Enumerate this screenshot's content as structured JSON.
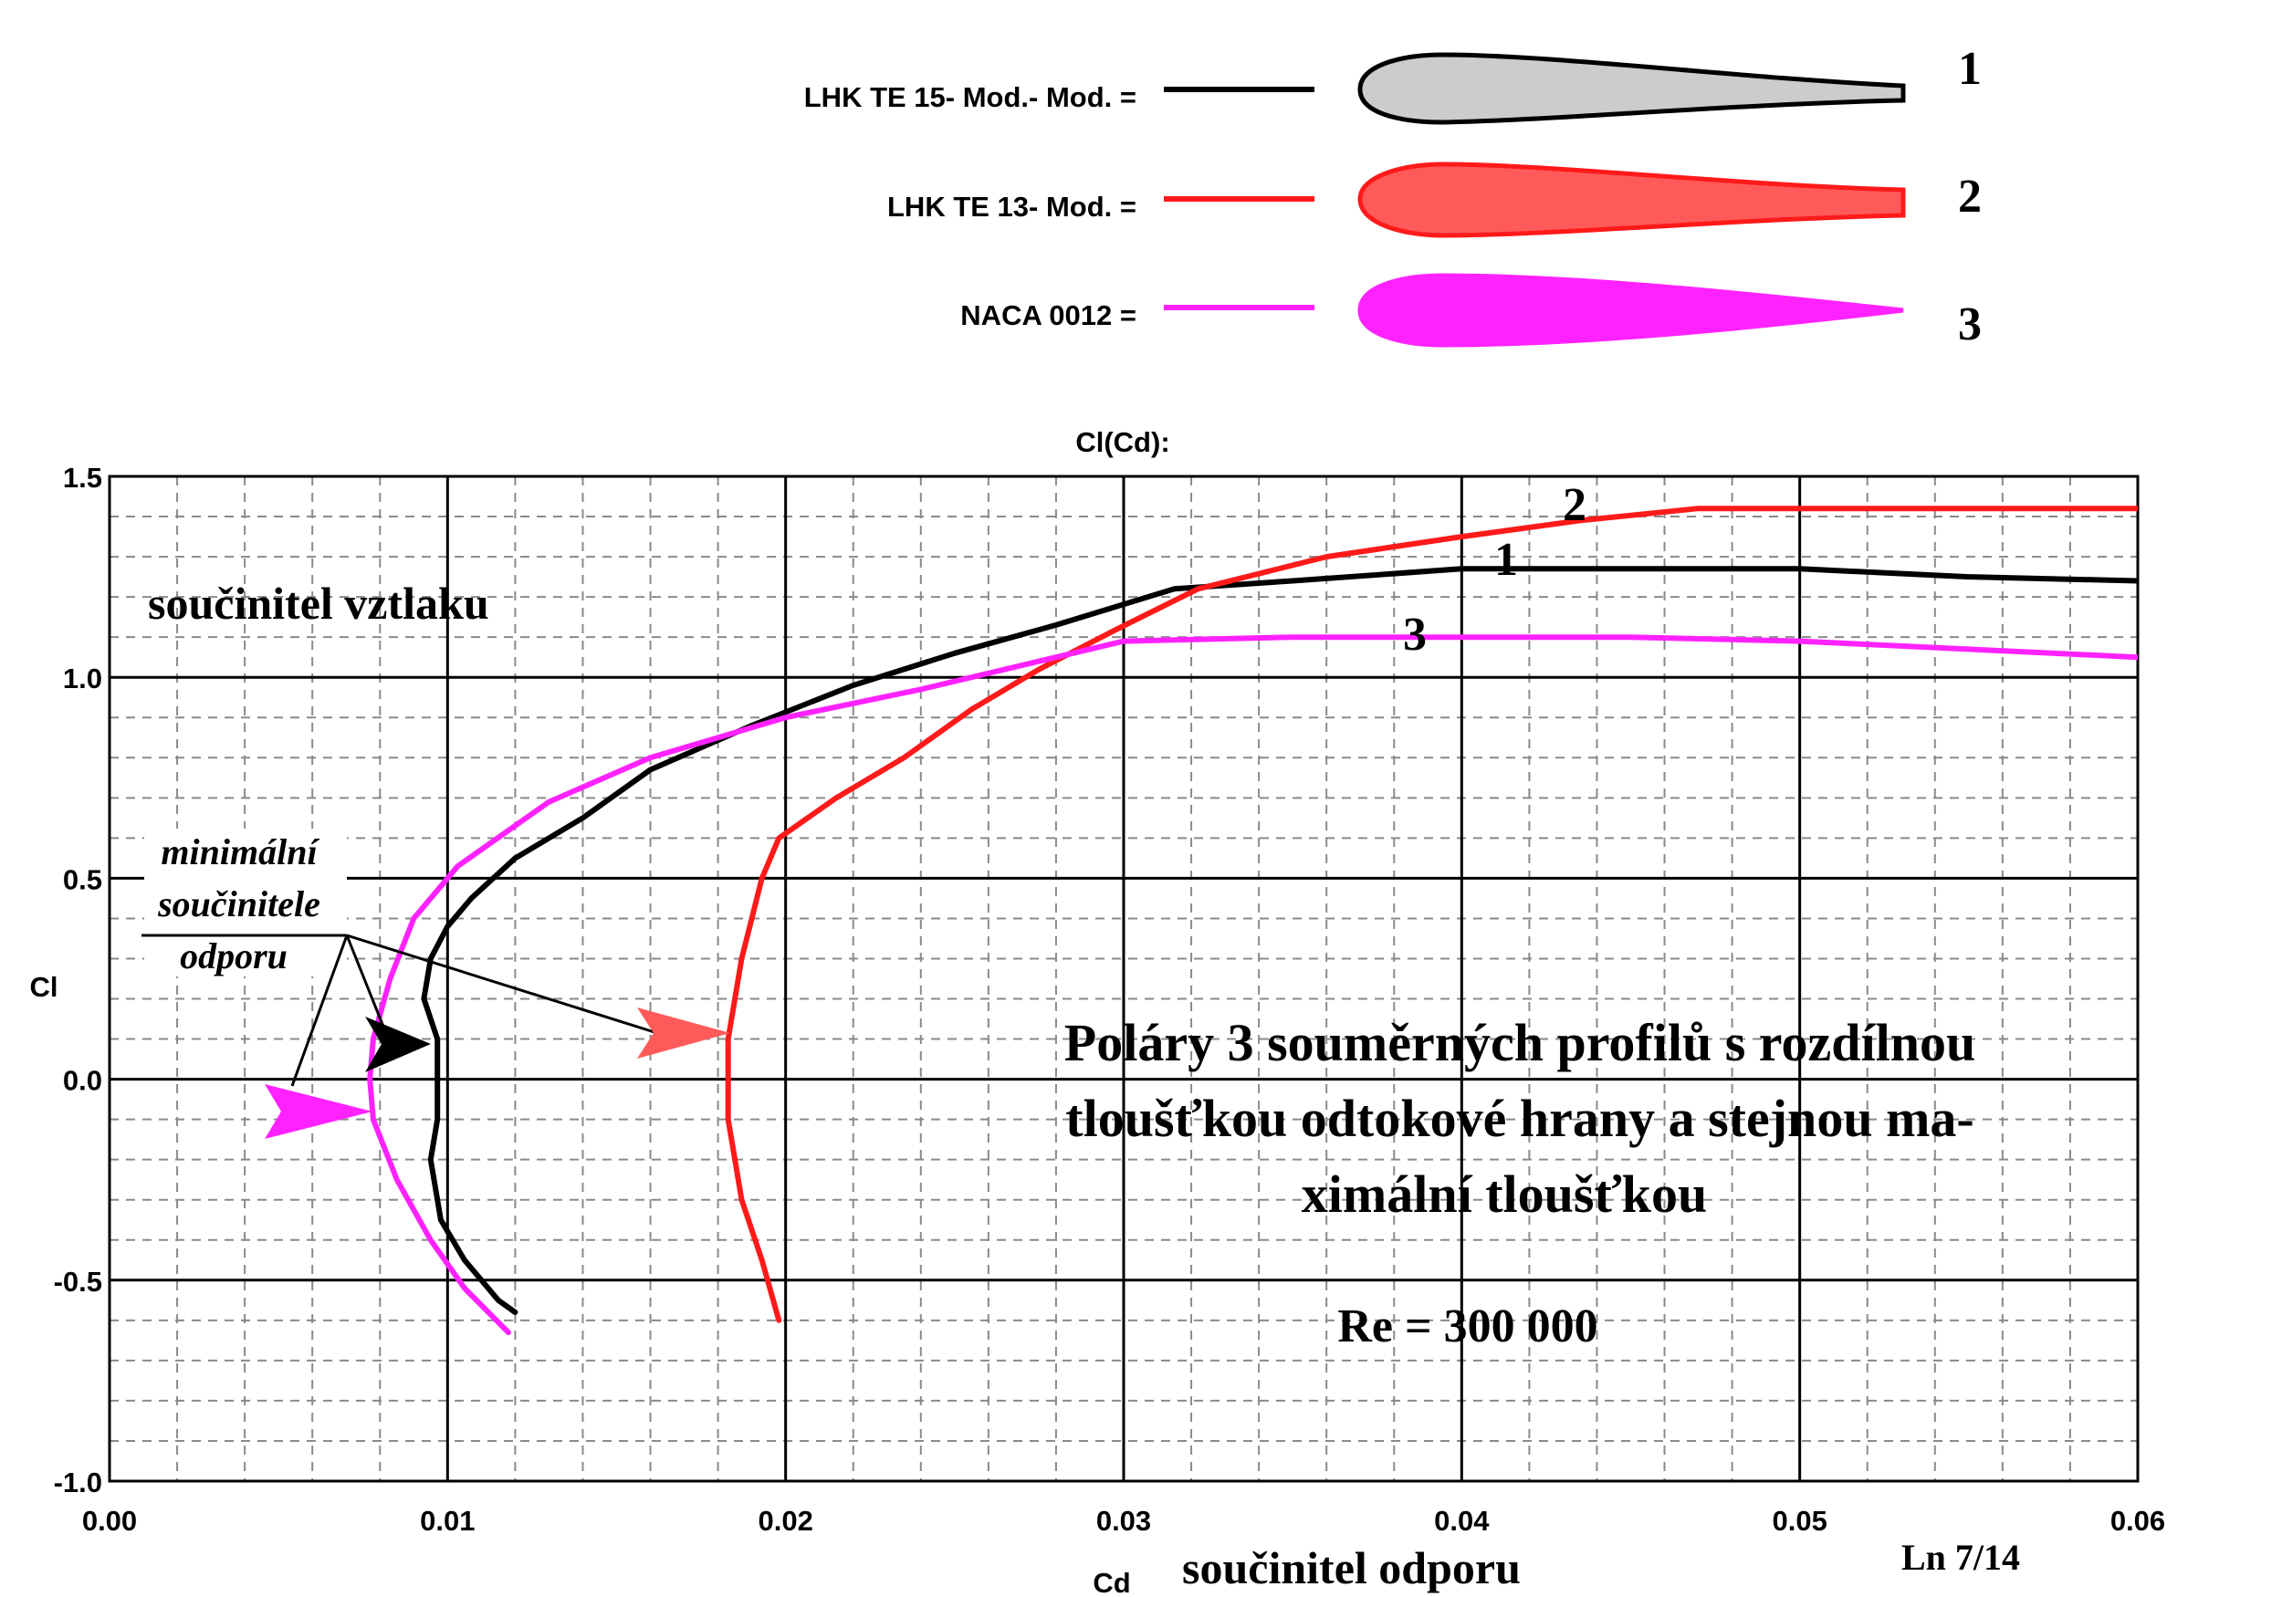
{
  "legend": {
    "items": [
      {
        "label": "LHK TE 15- Mod.- Mod. =",
        "number": "1",
        "color": "#000000",
        "fill": "#cccccc"
      },
      {
        "label": "LHK TE 13- Mod. =",
        "number": "2",
        "color": "#ff1a1a",
        "fill": "#ff5a5a"
      },
      {
        "label": "NACA 0012 =",
        "number": "3",
        "color": "#ff22ff",
        "fill": "#ff22ff"
      }
    ]
  },
  "annotations": {
    "ylabel_cz": "součinitel vztlaku",
    "xlabel_cz": "součinitel odporu",
    "min_drag": [
      "minimální",
      "součinitele",
      "odporu"
    ],
    "main_text": [
      "Poláry 3 souměrných profilů s rozdílnou",
      "tloušťkou odtokové hrany a stejnou ma-",
      "ximální tloušťkou"
    ],
    "reynolds": "Re = 300 000",
    "page_ref": "Ln 7/14",
    "curve_numbers": [
      "1",
      "2",
      "3"
    ]
  },
  "chart_data": {
    "type": "line",
    "title": "Cl(Cd):",
    "xlabel": "Cd",
    "ylabel": "Cl",
    "xlim": [
      0.0,
      0.06
    ],
    "ylim": [
      -1.0,
      1.5
    ],
    "xticks": [
      "0.00",
      "0.01",
      "0.02",
      "0.03",
      "0.04",
      "0.05",
      "0.06"
    ],
    "yticks": [
      "1.5",
      "1.0",
      "0.5",
      "0.0",
      "-0.5",
      "-1.0"
    ],
    "grid": true,
    "series": [
      {
        "name": "LHK TE 15- Mod.- Mod.",
        "color": "#000000",
        "points": [
          [
            0.012,
            -0.58
          ],
          [
            0.0115,
            -0.55
          ],
          [
            0.0105,
            -0.45
          ],
          [
            0.0098,
            -0.35
          ],
          [
            0.0095,
            -0.2
          ],
          [
            0.0097,
            -0.1
          ],
          [
            0.0097,
            0.0
          ],
          [
            0.0097,
            0.1
          ],
          [
            0.0093,
            0.2
          ],
          [
            0.0095,
            0.3
          ],
          [
            0.01,
            0.38
          ],
          [
            0.0107,
            0.45
          ],
          [
            0.012,
            0.55
          ],
          [
            0.014,
            0.65
          ],
          [
            0.016,
            0.77
          ],
          [
            0.019,
            0.88
          ],
          [
            0.022,
            0.98
          ],
          [
            0.025,
            1.06
          ],
          [
            0.028,
            1.13
          ],
          [
            0.0315,
            1.22
          ],
          [
            0.035,
            1.24
          ],
          [
            0.04,
            1.27
          ],
          [
            0.045,
            1.27
          ],
          [
            0.05,
            1.27
          ],
          [
            0.055,
            1.25
          ],
          [
            0.06,
            1.24
          ]
        ]
      },
      {
        "name": "LHK TE 13- Mod.",
        "color": "#ff1a1a",
        "points": [
          [
            0.0198,
            -0.6
          ],
          [
            0.0193,
            -0.45
          ],
          [
            0.0187,
            -0.3
          ],
          [
            0.0183,
            -0.1
          ],
          [
            0.0183,
            0.0
          ],
          [
            0.0183,
            0.1
          ],
          [
            0.0187,
            0.3
          ],
          [
            0.0193,
            0.5
          ],
          [
            0.0198,
            0.6
          ],
          [
            0.0215,
            0.7
          ],
          [
            0.0235,
            0.8
          ],
          [
            0.0255,
            0.92
          ],
          [
            0.0275,
            1.02
          ],
          [
            0.0298,
            1.12
          ],
          [
            0.0322,
            1.22
          ],
          [
            0.036,
            1.3
          ],
          [
            0.04,
            1.35
          ],
          [
            0.0435,
            1.39
          ],
          [
            0.047,
            1.42
          ],
          [
            0.05,
            1.42
          ],
          [
            0.055,
            1.42
          ],
          [
            0.06,
            1.42
          ]
        ]
      },
      {
        "name": "NACA 0012",
        "color": "#ff22ff",
        "points": [
          [
            0.0118,
            -0.63
          ],
          [
            0.0105,
            -0.52
          ],
          [
            0.0095,
            -0.4
          ],
          [
            0.0085,
            -0.25
          ],
          [
            0.0078,
            -0.1
          ],
          [
            0.0077,
            0.0
          ],
          [
            0.0078,
            0.1
          ],
          [
            0.0083,
            0.25
          ],
          [
            0.009,
            0.4
          ],
          [
            0.0103,
            0.53
          ],
          [
            0.013,
            0.69
          ],
          [
            0.016,
            0.8
          ],
          [
            0.02,
            0.9
          ],
          [
            0.024,
            0.97
          ],
          [
            0.0275,
            1.04
          ],
          [
            0.03,
            1.09
          ],
          [
            0.035,
            1.1
          ],
          [
            0.04,
            1.1
          ],
          [
            0.045,
            1.1
          ],
          [
            0.05,
            1.09
          ],
          [
            0.055,
            1.07
          ],
          [
            0.06,
            1.05
          ]
        ]
      }
    ]
  }
}
